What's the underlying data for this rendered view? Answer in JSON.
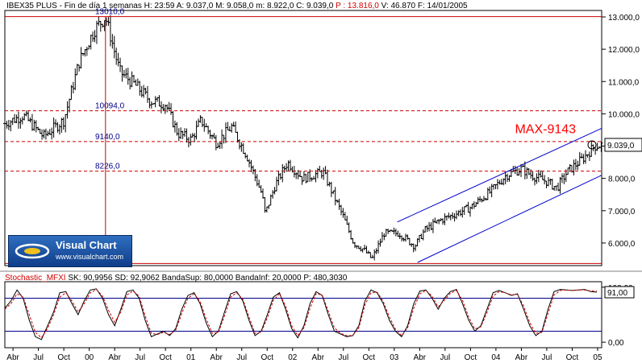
{
  "header": {
    "instrument": "IBEX35 PLUS",
    "period": "Fin de día 1 semanas",
    "hour": "H: 23:59",
    "open": "A: 9.037,0",
    "high": "M: 9.058,0",
    "low": "m: 8.922,0",
    "close": "C: 9.039,0",
    "change": "P : 13.816,0",
    "volume": "V: 46.870",
    "date": "F: 14/01/2005"
  },
  "logo": {
    "brand": "Visual Chart",
    "url": "www.visualchart.com"
  },
  "oscillator_header": {
    "name": "Stochastic_MFXI",
    "sk": "SK: 90,9956",
    "sd": "SD: 92,9062",
    "band_sup": "BandaSup: 80,0000",
    "band_inf": "BandaInf: 20,0000",
    "p": "P: 480,3030"
  },
  "colors": {
    "up": "#000000",
    "hline": "#cc0000",
    "channel": "#0000cc",
    "stoch_k": "#000000",
    "stoch_d": "#cc0000",
    "bands": "#00008b",
    "annotation": "#ff0000"
  },
  "chart_data": [
    {
      "type": "bar",
      "subtype": "ohlc-weekly",
      "ylim": [
        5300,
        13200
      ],
      "y_ticks": [
        "13.000,0",
        "12.000,0",
        "11.000,0",
        "10.000,0",
        "9.000,0",
        "8.000,0",
        "7.000,0",
        "6.000,0"
      ],
      "y_tick_values": [
        13000,
        12000,
        11000,
        10000,
        9000,
        8000,
        7000,
        6000
      ],
      "x_ticks": [
        "Abr",
        "Jul",
        "Oct",
        "00",
        "Abr",
        "Jul",
        "Oct",
        "01",
        "Abr",
        "Jul",
        "Oct",
        "02",
        "Abr",
        "Jul",
        "Oct",
        "03",
        "Abr",
        "Jul",
        "Oct",
        "04",
        "Abr",
        "Jul",
        "Oct",
        "05"
      ],
      "x_tick_dates": [
        1999.25,
        1999.5,
        1999.75,
        2000.0,
        2000.25,
        2000.5,
        2000.75,
        2001.0,
        2001.25,
        2001.5,
        2001.75,
        2002.0,
        2002.25,
        2002.5,
        2002.75,
        2003.0,
        2003.25,
        2003.5,
        2003.75,
        2004.0,
        2004.25,
        2004.5,
        2004.75,
        2005.0
      ],
      "xlim": [
        1999.17,
        2005.04
      ],
      "close_anchors": [
        [
          1999.17,
          9700
        ],
        [
          1999.35,
          9950
        ],
        [
          1999.55,
          9300
        ],
        [
          1999.75,
          9800
        ],
        [
          1999.9,
          11600
        ],
        [
          2000.05,
          12600
        ],
        [
          2000.16,
          13010
        ],
        [
          2000.3,
          11300
        ],
        [
          2000.45,
          10900
        ],
        [
          2000.6,
          10400
        ],
        [
          2000.75,
          10300
        ],
        [
          2000.87,
          9400
        ],
        [
          2001.0,
          9200
        ],
        [
          2001.1,
          9800
        ],
        [
          2001.25,
          9100
        ],
        [
          2001.4,
          9600
        ],
        [
          2001.55,
          8700
        ],
        [
          2001.7,
          7500
        ],
        [
          2001.73,
          6900
        ],
        [
          2001.83,
          7800
        ],
        [
          2001.95,
          8500
        ],
        [
          2002.1,
          8000
        ],
        [
          2002.3,
          8200
        ],
        [
          2002.5,
          6800
        ],
        [
          2002.6,
          6000
        ],
        [
          2002.7,
          5800
        ],
        [
          2002.78,
          5500
        ],
        [
          2002.9,
          6300
        ],
        [
          2003.05,
          6300
        ],
        [
          2003.2,
          5900
        ],
        [
          2003.3,
          6400
        ],
        [
          2003.45,
          6700
        ],
        [
          2003.6,
          6900
        ],
        [
          2003.75,
          7100
        ],
        [
          2003.95,
          7600
        ],
        [
          2004.1,
          8100
        ],
        [
          2004.25,
          8300
        ],
        [
          2004.35,
          8100
        ],
        [
          2004.5,
          7900
        ],
        [
          2004.6,
          7700
        ],
        [
          2004.7,
          8200
        ],
        [
          2004.85,
          8600
        ],
        [
          2004.97,
          9000
        ],
        [
          2005.04,
          9039
        ]
      ],
      "levels": [
        {
          "value": 13010,
          "label": "13010,0",
          "style": "solid"
        },
        {
          "value": 10094,
          "label": "10094,0",
          "style": "dashed"
        },
        {
          "value": 9140,
          "label": "9140,0",
          "style": "dashed"
        },
        {
          "value": 8226,
          "label": "8226,0",
          "style": "dashed"
        },
        {
          "value": 5364,
          "label": "",
          "style": "solid"
        }
      ],
      "max_marker": {
        "date": 2000.16
      },
      "channel_lines": [
        {
          "from": [
            2003.03,
            6650
          ],
          "to": [
            2005.04,
            9550
          ]
        },
        {
          "from": [
            2003.23,
            5400
          ],
          "to": [
            2005.04,
            8100
          ]
        }
      ],
      "annotation": {
        "text": "MAX-9143",
        "date": 2004.85,
        "value": 9450
      },
      "last_value": {
        "value": 9039,
        "label": "9.039,0"
      }
    },
    {
      "type": "line",
      "subtype": "stochastic",
      "ylim": [
        -10,
        110
      ],
      "y_ticks": [
        "100,00",
        "0,00"
      ],
      "y_tick_values": [
        100,
        0
      ],
      "bands": [
        80,
        20
      ],
      "series": [
        {
          "name": "SK",
          "values": [
            62,
            75,
            95,
            80,
            40,
            10,
            5,
            30,
            55,
            90,
            92,
            70,
            50,
            75,
            95,
            97,
            80,
            50,
            30,
            60,
            92,
            95,
            80,
            40,
            10,
            15,
            20,
            12,
            25,
            60,
            85,
            90,
            70,
            35,
            10,
            20,
            55,
            88,
            92,
            75,
            40,
            12,
            20,
            50,
            82,
            90,
            60,
            25,
            8,
            30,
            70,
            92,
            85,
            50,
            20,
            15,
            10,
            12,
            30,
            75,
            95,
            90,
            70,
            40,
            20,
            10,
            30,
            70,
            93,
            95,
            80,
            60,
            80,
            92,
            96,
            70,
            40,
            20,
            30,
            60,
            90,
            94,
            90,
            85,
            88,
            60,
            30,
            12,
            20,
            60,
            92,
            96,
            95,
            94,
            95,
            96,
            92,
            91
          ]
        },
        {
          "name": "SD",
          "values": [
            60,
            70,
            88,
            82,
            50,
            18,
            8,
            25,
            50,
            82,
            90,
            75,
            55,
            70,
            90,
            96,
            84,
            58,
            36,
            55,
            86,
            93,
            84,
            48,
            16,
            14,
            18,
            14,
            22,
            52,
            80,
            88,
            74,
            42,
            16,
            18,
            48,
            82,
            90,
            78,
            46,
            16,
            18,
            44,
            76,
            88,
            66,
            30,
            12,
            26,
            62,
            88,
            86,
            56,
            26,
            16,
            12,
            12,
            26,
            68,
            90,
            91,
            74,
            46,
            24,
            12,
            26,
            62,
            88,
            94,
            84,
            64,
            76,
            89,
            94,
            76,
            46,
            24,
            28,
            54,
            84,
            92,
            90,
            86,
            87,
            66,
            36,
            16,
            18,
            52,
            86,
            94,
            95,
            94,
            95,
            95,
            93,
            93
          ]
        }
      ],
      "last_value": {
        "label": "91,00"
      }
    }
  ]
}
